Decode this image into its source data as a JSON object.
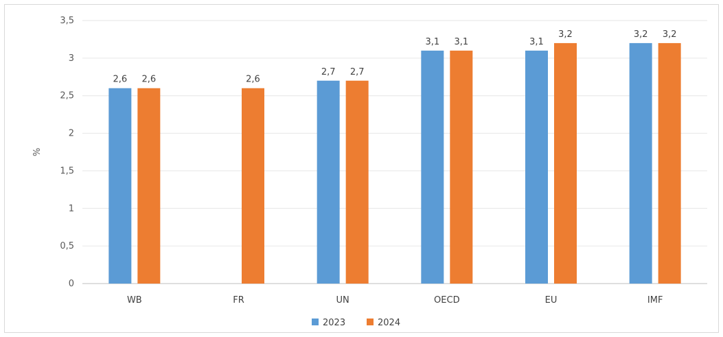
{
  "chart_data": {
    "type": "bar",
    "title": "",
    "xlabel": "",
    "ylabel": "%",
    "ylim": [
      0,
      3.5
    ],
    "yticks": [
      "0",
      "0,5",
      "1",
      "1,5",
      "2",
      "2,5",
      "3",
      "3,5"
    ],
    "ytick_values": [
      0,
      0.5,
      1,
      1.5,
      2,
      2.5,
      3,
      3.5
    ],
    "grid": true,
    "legend_position": "bottom",
    "categories": [
      "WB",
      "FR",
      "UN",
      "OECD",
      "EU",
      "IMF"
    ],
    "series": [
      {
        "name": "2023",
        "color": "#5b9bd5",
        "values": [
          2.6,
          null,
          2.7,
          3.1,
          3.1,
          3.2
        ],
        "labels": [
          "2,6",
          "",
          "2,7",
          "3,1",
          "3,1",
          "3,2"
        ]
      },
      {
        "name": "2024",
        "color": "#ed7d31",
        "values": [
          2.6,
          2.6,
          2.7,
          3.1,
          3.2,
          3.2
        ],
        "labels": [
          "2,6",
          "2,6",
          "2,7",
          "3,1",
          "3,2",
          "3,2"
        ]
      }
    ]
  }
}
